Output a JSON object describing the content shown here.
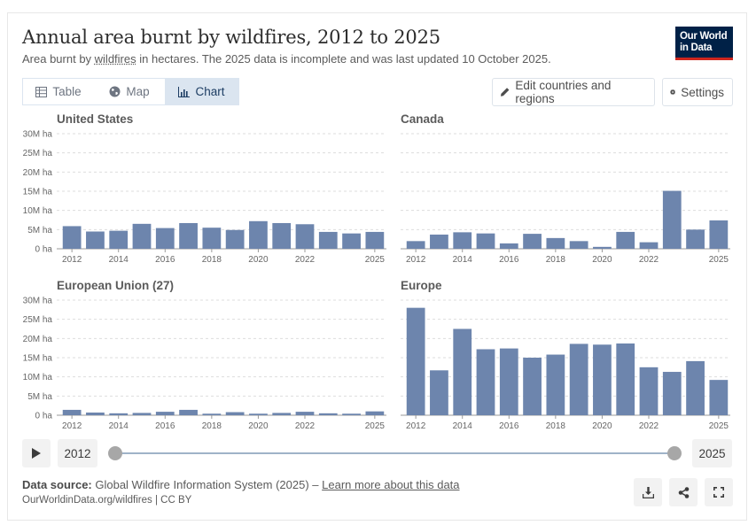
{
  "header": {
    "title": "Annual area burnt by wildfires, 2012 to 2025",
    "subtitle_pre": "Area burnt by ",
    "subtitle_link": "wildfires",
    "subtitle_post": " in hectares. The 2025 data is incomplete and was last updated 10 October 2025.",
    "logo_line1": "Our World",
    "logo_line2": "in Data"
  },
  "tabs": [
    {
      "label": "Table",
      "icon": "table-icon"
    },
    {
      "label": "Map",
      "icon": "globe-icon"
    },
    {
      "label": "Chart",
      "icon": "chart-icon",
      "active": true
    }
  ],
  "controls": {
    "edit_label": "Edit countries and regions",
    "settings_label": "Settings"
  },
  "timeline": {
    "start_year": "2012",
    "end_year": "2025"
  },
  "footer": {
    "source_label": "Data source:",
    "source_text": " Global Wildfire Information System (2025) – ",
    "learn_more": "Learn more about this data",
    "url": "OurWorldinData.org/wildfires | CC BY"
  },
  "colors": {
    "bar": "#6d85ad",
    "grid": "#dddddd",
    "accent": "#002147",
    "logo_red": "#ce261e"
  },
  "chart_data": [
    {
      "type": "bar",
      "title": "United States",
      "categories": [
        "2012",
        "2013",
        "2014",
        "2015",
        "2016",
        "2017",
        "2018",
        "2019",
        "2020",
        "2021",
        "2022",
        "2023",
        "2024",
        "2025"
      ],
      "values": [
        5.9,
        4.5,
        4.7,
        6.5,
        5.4,
        6.7,
        5.5,
        4.9,
        7.2,
        6.7,
        6.4,
        4.4,
        4.0,
        4.4
      ],
      "unit": "M ha",
      "ylim": [
        0,
        30
      ],
      "yticks": [
        "0 ha",
        "5M ha",
        "10M ha",
        "15M ha",
        "20M ha",
        "25M ha",
        "30M ha"
      ],
      "xticks": [
        "2012",
        "2014",
        "2016",
        "2018",
        "2020",
        "2022",
        "2025"
      ]
    },
    {
      "type": "bar",
      "title": "Canada",
      "categories": [
        "2012",
        "2013",
        "2014",
        "2015",
        "2016",
        "2017",
        "2018",
        "2019",
        "2020",
        "2021",
        "2022",
        "2023",
        "2024",
        "2025"
      ],
      "values": [
        2.0,
        3.7,
        4.3,
        4.0,
        1.4,
        3.9,
        2.8,
        2.0,
        0.5,
        4.4,
        1.7,
        15.1,
        5.0,
        7.4
      ],
      "unit": "M ha",
      "ylim": [
        0,
        30
      ],
      "yticks": [
        "0 ha",
        "5M ha",
        "10M ha",
        "15M ha",
        "20M ha",
        "25M ha",
        "30M ha"
      ],
      "xticks": [
        "2012",
        "2014",
        "2016",
        "2018",
        "2020",
        "2022",
        "2025"
      ]
    },
    {
      "type": "bar",
      "title": "European Union (27)",
      "categories": [
        "2012",
        "2013",
        "2014",
        "2015",
        "2016",
        "2017",
        "2018",
        "2019",
        "2020",
        "2021",
        "2022",
        "2023",
        "2024",
        "2025"
      ],
      "values": [
        1.4,
        0.7,
        0.5,
        0.6,
        0.9,
        1.4,
        0.4,
        0.8,
        0.4,
        0.6,
        0.9,
        0.5,
        0.4,
        1.0
      ],
      "unit": "M ha",
      "ylim": [
        0,
        30
      ],
      "yticks": [
        "0 ha",
        "5M ha",
        "10M ha",
        "15M ha",
        "20M ha",
        "25M ha",
        "30M ha"
      ],
      "xticks": [
        "2012",
        "2014",
        "2016",
        "2018",
        "2020",
        "2022",
        "2025"
      ]
    },
    {
      "type": "bar",
      "title": "Europe",
      "categories": [
        "2012",
        "2013",
        "2014",
        "2015",
        "2016",
        "2017",
        "2018",
        "2019",
        "2020",
        "2021",
        "2022",
        "2023",
        "2024",
        "2025"
      ],
      "values": [
        28.0,
        11.7,
        22.5,
        17.2,
        17.4,
        15.0,
        15.8,
        18.6,
        18.4,
        18.7,
        12.5,
        11.3,
        14.1,
        9.2
      ],
      "unit": "M ha",
      "ylim": [
        0,
        30
      ],
      "yticks": [],
      "xticks": [
        "2012",
        "2014",
        "2016",
        "2018",
        "2020",
        "2022",
        "2025"
      ]
    }
  ]
}
